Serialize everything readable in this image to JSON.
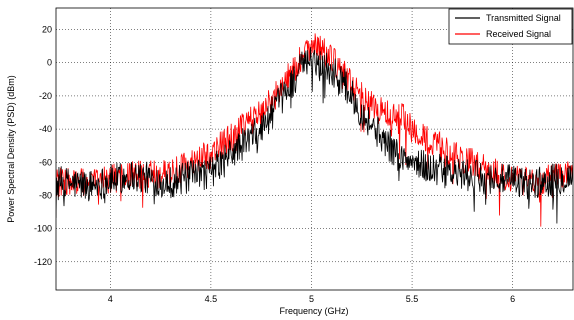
{
  "chart_data": {
    "type": "line",
    "title": "",
    "xlabel": "Frequency (GHz)",
    "ylabel": "Power Spectral Density (PSD) (dBm)",
    "xlim": [
      3.73,
      6.3
    ],
    "ylim": [
      -137,
      33
    ],
    "x_ticks": [
      4,
      4.5,
      5,
      5.5,
      6
    ],
    "x_tick_labels": [
      "4",
      "4.5",
      "5",
      "5.5",
      "6"
    ],
    "y_ticks": [
      20,
      0,
      -20,
      -40,
      -60,
      -80,
      -100,
      -120
    ],
    "y_tick_labels": [
      "20",
      "0",
      "-20",
      "-40",
      "-60",
      "-80",
      "-100",
      "-120"
    ],
    "grid": true,
    "legend_position": "top-right",
    "series": [
      {
        "name": "Transmitted Signal",
        "color": "#000000",
        "envelope": {
          "x": [
            3.73,
            3.9,
            4.1,
            4.3,
            4.5,
            4.6,
            4.75,
            4.85,
            4.95,
            5.0,
            5.05,
            5.15,
            5.25,
            5.35,
            5.45,
            5.55,
            5.7,
            5.9,
            6.1,
            6.3
          ],
          "y": [
            -72,
            -74,
            -68,
            -72,
            -66,
            -55,
            -40,
            -22,
            -3,
            2,
            0,
            -10,
            -30,
            -45,
            -58,
            -62,
            -67,
            -70,
            -73,
            -68
          ]
        },
        "noise_amplitude": 10
      },
      {
        "name": "Received Signal",
        "color": "#ff0000",
        "envelope": {
          "x": [
            3.73,
            3.9,
            4.1,
            4.3,
            4.5,
            4.6,
            4.75,
            4.85,
            4.95,
            5.0,
            5.05,
            5.15,
            5.25,
            5.35,
            5.45,
            5.55,
            5.7,
            5.9,
            6.1,
            6.3
          ],
          "y": [
            -72,
            -72,
            -68,
            -67,
            -55,
            -45,
            -30,
            -15,
            3,
            12,
            8,
            -5,
            -20,
            -30,
            -33,
            -45,
            -55,
            -66,
            -72,
            -66
          ]
        },
        "noise_amplitude": 9
      }
    ]
  }
}
